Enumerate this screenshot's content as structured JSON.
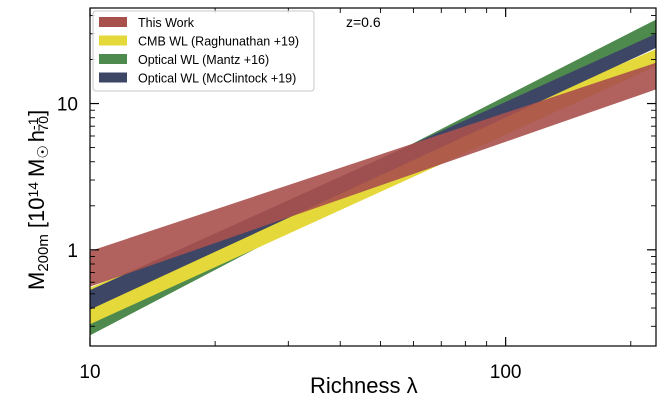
{
  "chart_data": {
    "type": "area",
    "title": "",
    "annotation": "z=0.6",
    "xlabel": "Richness λ",
    "ylabel": "M200m [10^14 M☉ h70^-1]",
    "ylabel_parts": {
      "main": "M",
      "sub": "200m",
      "bracket_open": "[10",
      "exp": "14",
      "msun": "M",
      "h": "h",
      "h_exp": "-1",
      "h_sub": "70",
      "bracket_close": "]"
    },
    "x_scale": "log",
    "y_scale": "log",
    "xlim": [
      10,
      230
    ],
    "ylim": [
      0.22,
      45
    ],
    "x_ticks": [
      {
        "value": 10,
        "label": "10"
      },
      {
        "value": 100,
        "label": "100"
      }
    ],
    "y_ticks": [
      {
        "value": 1,
        "label": "1"
      },
      {
        "value": 10,
        "label": "10"
      }
    ],
    "grid": false,
    "legend_position": "top-left",
    "series": [
      {
        "name": "Optical WL (Mantz +16)",
        "color": "#4e8a4e",
        "x": [
          10,
          230
        ],
        "lower": [
          0.26,
          27.5
        ],
        "upper": [
          0.4,
          37.5
        ]
      },
      {
        "name": "CMB WL (Raghunathan +19)",
        "color": "#e4d83a",
        "x": [
          10,
          230
        ],
        "lower": [
          0.31,
          18.0
        ],
        "upper": [
          0.55,
          23.5
        ]
      },
      {
        "name": "Optical WL (McClintock +19)",
        "color": "#3e4666",
        "x": [
          10,
          230
        ],
        "lower": [
          0.39,
          24.0
        ],
        "upper": [
          0.53,
          30.0
        ]
      },
      {
        "name": "This Work",
        "color": "#a8504c",
        "x": [
          10,
          230
        ],
        "lower": [
          0.56,
          12.5
        ],
        "upper": [
          0.98,
          19.0
        ]
      }
    ],
    "legend_order": [
      3,
      1,
      0,
      2
    ]
  }
}
